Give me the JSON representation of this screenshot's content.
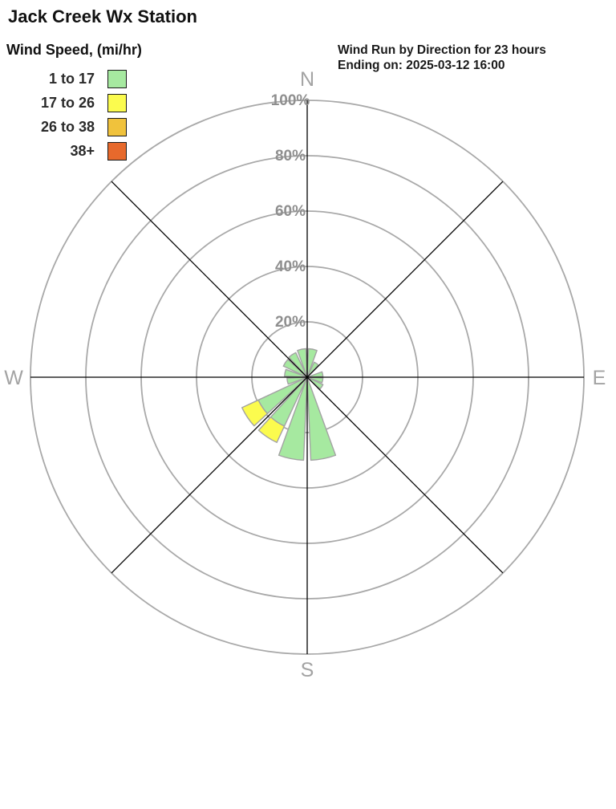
{
  "station_title": "Jack Creek Wx Station",
  "legend": {
    "title": "Wind Speed, (mi/hr)",
    "items": [
      {
        "label": "1 to 17",
        "color": "#a6e9a0"
      },
      {
        "label": "17 to 26",
        "color": "#fbfb4e"
      },
      {
        "label": "26 to 38",
        "color": "#f0c23c"
      },
      {
        "label": "38+",
        "color": "#e7692c"
      }
    ]
  },
  "chart_header": {
    "line1": "Wind Run by Direction for 23 hours",
    "line2": "Ending on: 2025-03-12 16:00"
  },
  "chart_data": {
    "type": "bar",
    "subtype": "wind-rose-polar",
    "units": "% of wind run",
    "grid": true,
    "ring_ticks": [
      20,
      40,
      60,
      80,
      100
    ],
    "ring_labels": [
      "20%",
      "40%",
      "60%",
      "80%",
      "100%"
    ],
    "compass_labels": [
      "N",
      "E",
      "S",
      "W"
    ],
    "sector_width_deg": 22.5,
    "sector_gap_deg": 2.5,
    "speed_bins": [
      "1 to 17",
      "17 to 26",
      "26 to 38",
      "38+"
    ],
    "sectors": [
      {
        "start_deg": 0.0,
        "values": [
          10.3,
          0,
          0,
          0
        ]
      },
      {
        "start_deg": 22.5,
        "values": [
          6.0,
          0,
          0,
          0
        ]
      },
      {
        "start_deg": 45.0,
        "values": [
          0,
          0,
          0,
          0
        ]
      },
      {
        "start_deg": 67.5,
        "values": [
          5.7,
          0,
          0,
          0
        ]
      },
      {
        "start_deg": 90.0,
        "values": [
          5.7,
          0,
          0,
          0
        ]
      },
      {
        "start_deg": 112.5,
        "values": [
          6.3,
          0,
          0,
          0
        ]
      },
      {
        "start_deg": 135.0,
        "values": [
          0,
          0,
          0,
          0
        ]
      },
      {
        "start_deg": 157.5,
        "values": [
          30.0,
          0,
          0,
          0
        ]
      },
      {
        "start_deg": 180.0,
        "values": [
          30.0,
          0,
          0,
          0
        ]
      },
      {
        "start_deg": 202.5,
        "values": [
          19.5,
          6.5,
          0,
          0
        ]
      },
      {
        "start_deg": 225.0,
        "values": [
          19.5,
          6.5,
          0,
          0
        ]
      },
      {
        "start_deg": 247.5,
        "values": [
          7.3,
          0,
          0,
          0
        ]
      },
      {
        "start_deg": 270.0,
        "values": [
          8.2,
          0,
          0,
          0
        ]
      },
      {
        "start_deg": 292.5,
        "values": [
          9.5,
          0,
          0,
          0
        ]
      },
      {
        "start_deg": 315.0,
        "values": [
          9.8,
          0,
          0,
          0
        ]
      },
      {
        "start_deg": 337.5,
        "values": [
          10.3,
          0,
          0,
          0
        ]
      }
    ]
  },
  "style": {
    "ring_color": "#a9a9a9",
    "axis_color": "#000000",
    "petal_outline": "#a3a3a3",
    "compass_label_color": "#a3a3a3",
    "ring_label_color": "#8f8f8f"
  }
}
